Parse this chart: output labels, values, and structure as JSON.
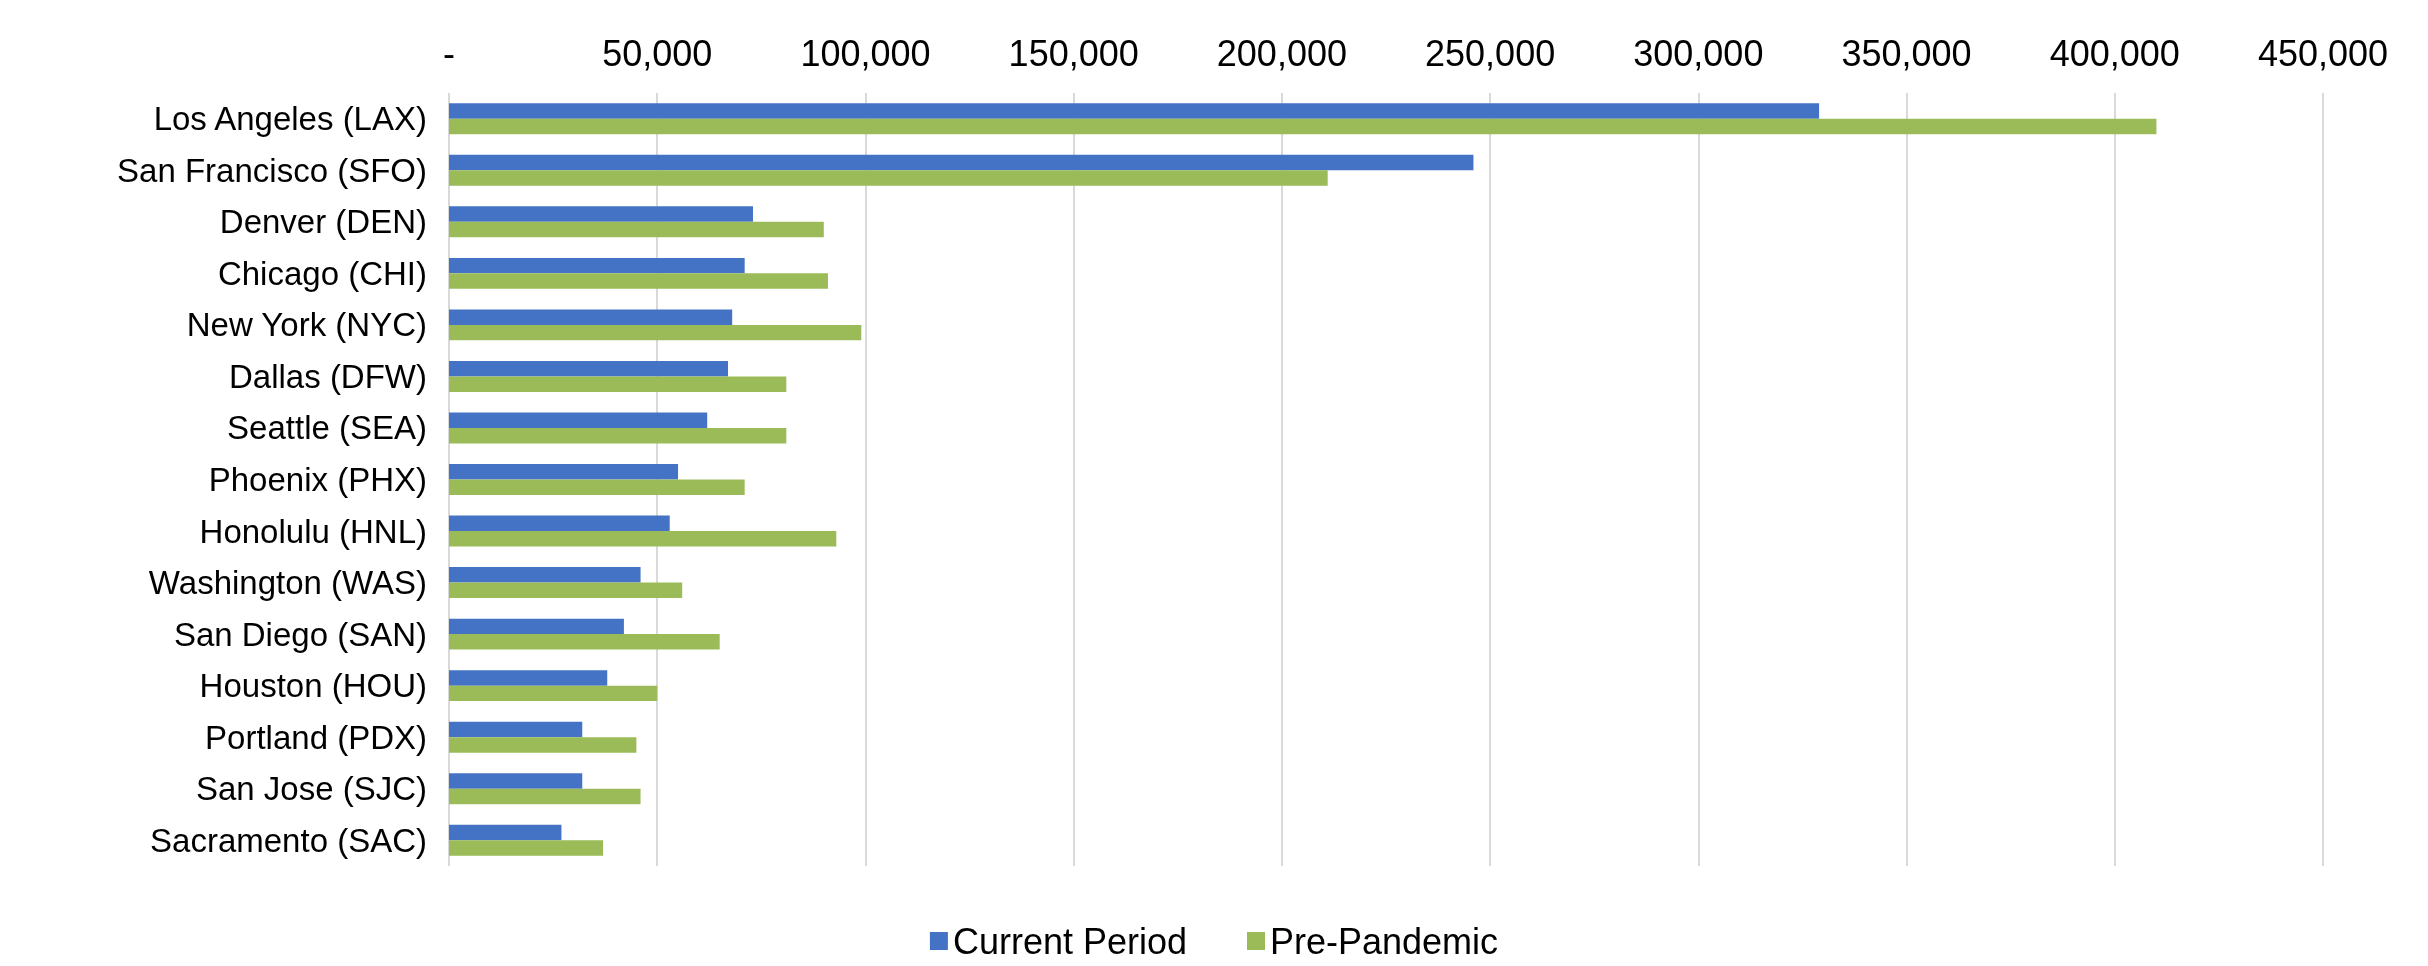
{
  "chart_data": {
    "type": "bar",
    "orientation": "horizontal",
    "categories": [
      "Los Angeles (LAX)",
      "San Francisco (SFO)",
      "Denver (DEN)",
      "Chicago (CHI)",
      "New York (NYC)",
      "Dallas (DFW)",
      "Seattle (SEA)",
      "Phoenix (PHX)",
      "Honolulu (HNL)",
      "Washington (WAS)",
      "San Diego (SAN)",
      "Houston (HOU)",
      "Portland (PDX)",
      "San Jose (SJC)",
      "Sacramento (SAC)"
    ],
    "series": [
      {
        "name": "Current Period",
        "color": "#4472c4",
        "values": [
          329000,
          246000,
          73000,
          71000,
          68000,
          67000,
          62000,
          55000,
          53000,
          46000,
          42000,
          38000,
          32000,
          32000,
          27000
        ]
      },
      {
        "name": "Pre-Pandemic",
        "color": "#9bbb59",
        "values": [
          410000,
          211000,
          90000,
          91000,
          99000,
          81000,
          81000,
          71000,
          93000,
          56000,
          65000,
          50000,
          45000,
          46000,
          37000
        ]
      }
    ],
    "xlim": [
      0,
      450000
    ],
    "xticks": [
      {
        "value": 0,
        "label": "-"
      },
      {
        "value": 50000,
        "label": "50,000"
      },
      {
        "value": 100000,
        "label": "100,000"
      },
      {
        "value": 150000,
        "label": "150,000"
      },
      {
        "value": 200000,
        "label": "200,000"
      },
      {
        "value": 250000,
        "label": "250,000"
      },
      {
        "value": 300000,
        "label": "300,000"
      },
      {
        "value": 350000,
        "label": "350,000"
      },
      {
        "value": 400000,
        "label": "400,000"
      },
      {
        "value": 450000,
        "label": "450,000"
      }
    ],
    "grid": "x",
    "legend": "bottom"
  }
}
